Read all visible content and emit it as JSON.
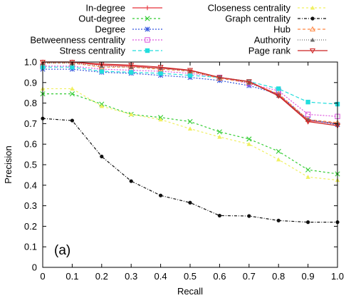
{
  "chart_data": {
    "type": "line",
    "panel_label": "(a)",
    "xlabel": "Recall",
    "ylabel": "Precision",
    "xlim": [
      0,
      1
    ],
    "ylim": [
      0,
      1
    ],
    "x": [
      0,
      0.1,
      0.2,
      0.3,
      0.4,
      0.5,
      0.6,
      0.7,
      0.8,
      0.9,
      1.0
    ],
    "x_ticks": [
      "0",
      "0.1",
      "0.2",
      "0.3",
      "0.4",
      "0.5",
      "0.6",
      "0.7",
      "0.8",
      "0.9",
      "1.0"
    ],
    "y_ticks": [
      "0",
      "0.1",
      "0.2",
      "0.3",
      "0.4",
      "0.5",
      "0.6",
      "0.7",
      "0.8",
      "0.9",
      "1.0"
    ],
    "grid": false,
    "legend_position": "top",
    "series": [
      {
        "name": "In-degree",
        "color": "#e8303a",
        "marker": "plus",
        "dash": "",
        "values": [
          1.0,
          1.0,
          0.985,
          0.98,
          0.97,
          0.96,
          0.925,
          0.905,
          0.84,
          0.715,
          0.7
        ]
      },
      {
        "name": "Out-degree",
        "color": "#33cc33",
        "marker": "x",
        "dash": "3,3",
        "values": [
          0.845,
          0.845,
          0.795,
          0.745,
          0.73,
          0.71,
          0.66,
          0.625,
          0.565,
          0.475,
          0.455
        ]
      },
      {
        "name": "Degree",
        "color": "#3355dd",
        "marker": "asterisk",
        "dash": "2,2",
        "values": [
          0.965,
          0.965,
          0.95,
          0.945,
          0.935,
          0.925,
          0.91,
          0.885,
          0.845,
          0.72,
          0.695
        ]
      },
      {
        "name": "Betweenness centrality",
        "color": "#dd55dd",
        "marker": "square-open",
        "dash": "2,2",
        "values": [
          0.98,
          0.98,
          0.965,
          0.96,
          0.955,
          0.945,
          0.925,
          0.895,
          0.86,
          0.745,
          0.735
        ]
      },
      {
        "name": "Stress centrality",
        "color": "#22dddd",
        "marker": "square-filled",
        "dash": "5,3",
        "values": [
          0.975,
          0.975,
          0.955,
          0.95,
          0.945,
          0.935,
          0.925,
          0.905,
          0.87,
          0.805,
          0.795
        ]
      },
      {
        "name": "Closeness centrality",
        "color": "#f0f060",
        "marker": "triangle-filled",
        "dash": "3,3",
        "values": [
          0.87,
          0.87,
          0.785,
          0.745,
          0.72,
          0.675,
          0.635,
          0.6,
          0.525,
          0.44,
          0.425
        ]
      },
      {
        "name": "Graph centrality",
        "color": "#111111",
        "marker": "circle-filled",
        "dash": "4,2,1,2",
        "values": [
          0.725,
          0.715,
          0.54,
          0.42,
          0.35,
          0.315,
          0.252,
          0.25,
          0.228,
          0.22,
          0.22
        ]
      },
      {
        "name": "Hub",
        "color": "#ff8844",
        "marker": "triangle-open",
        "dash": "4,3",
        "values": [
          0.995,
          0.995,
          0.975,
          0.975,
          0.965,
          0.955,
          0.92,
          0.9,
          0.845,
          0.72,
          0.705
        ]
      },
      {
        "name": "Authority",
        "color": "#6b6b6b",
        "marker": "triangle-filled",
        "dash": "1,2",
        "values": [
          0.995,
          0.995,
          0.98,
          0.975,
          0.97,
          0.955,
          0.925,
          0.9,
          0.835,
          0.72,
          0.7
        ]
      },
      {
        "name": "Page rank",
        "color": "#cc2222",
        "marker": "triangle-down-open",
        "dash": "",
        "values": [
          1.0,
          1.0,
          0.99,
          0.985,
          0.975,
          0.96,
          0.925,
          0.905,
          0.835,
          0.71,
          0.69
        ]
      }
    ]
  }
}
